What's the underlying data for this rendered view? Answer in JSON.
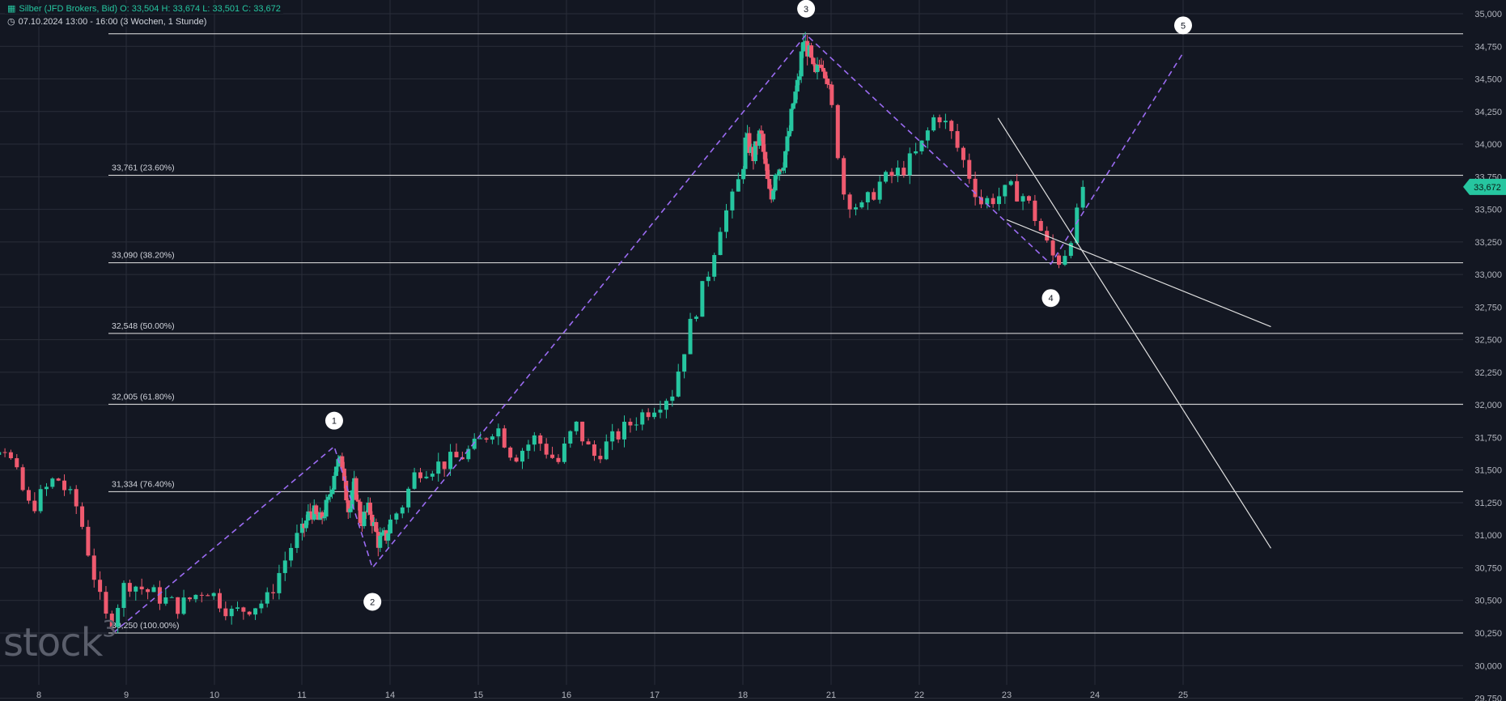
{
  "header": {
    "line1": "Silber (JFD Brokers, Bid)  O: 33,504  H: 33,674  L: 33,501  C: 33,672",
    "line2": "07.10.2024 13:00 - 16:00   (3 Wochen, 1 Stunde)"
  },
  "watermark": {
    "text": "stock",
    "sup": "3"
  },
  "colors": {
    "background": "#131722",
    "grid": "#2a2e39",
    "up": "#26c6a0",
    "down": "#ef5a6f",
    "wave": "#9b6bf2",
    "trendline": "#e0e0e0",
    "axis_text": "#b2b5be",
    "price_tag": "#26c6a0"
  },
  "chart_data": {
    "type": "candlestick",
    "instrument": "Silber (JFD Brokers, Bid)",
    "ohlc": {
      "open": 33.504,
      "high": 33.674,
      "low": 33.501,
      "close": 33.672
    },
    "last_price": "33,672",
    "y_ticks": [
      "35,000",
      "34,750",
      "34,500",
      "34,250",
      "34,000",
      "33,750",
      "33,500",
      "33,250",
      "33,000",
      "32,750",
      "32,500",
      "32,250",
      "32,000",
      "31,750",
      "31,500",
      "31,250",
      "31,000",
      "30,750",
      "30,500",
      "30,250",
      "30,000",
      "29,750"
    ],
    "ylim": [
      29.75,
      35.0
    ],
    "x_ticks": [
      {
        "label": "8",
        "x": 8
      },
      {
        "label": "9",
        "x": 9
      },
      {
        "label": "10",
        "x": 10
      },
      {
        "label": "11",
        "x": 11
      },
      {
        "label": "14",
        "x": 14
      },
      {
        "label": "15",
        "x": 15
      },
      {
        "label": "16",
        "x": 16
      },
      {
        "label": "17",
        "x": 17
      },
      {
        "label": "18",
        "x": 18
      },
      {
        "label": "21",
        "x": 21
      },
      {
        "label": "22",
        "x": 22
      },
      {
        "label": "23",
        "x": 23
      },
      {
        "label": "24",
        "x": 24
      },
      {
        "label": "25",
        "x": 25
      }
    ],
    "price_path": [
      [
        7.0,
        31.95
      ],
      [
        7.3,
        31.65
      ],
      [
        7.6,
        31.7
      ],
      [
        7.9,
        31.2
      ],
      [
        8.2,
        31.45
      ],
      [
        8.45,
        31.2
      ],
      [
        8.7,
        30.5
      ],
      [
        8.8,
        30.3
      ],
      [
        9.0,
        30.65
      ],
      [
        9.3,
        30.55
      ],
      [
        9.6,
        30.45
      ],
      [
        9.9,
        30.6
      ],
      [
        10.2,
        30.4
      ],
      [
        10.6,
        30.5
      ],
      [
        10.9,
        30.95
      ],
      [
        11.3,
        31.2
      ],
      [
        11.6,
        31.1
      ],
      [
        11.9,
        31.25
      ],
      [
        12.15,
        31.55
      ],
      [
        12.4,
        31.55
      ],
      [
        12.6,
        31.15
      ],
      [
        12.8,
        31.4
      ],
      [
        13.0,
        31.1
      ],
      [
        13.3,
        31.2
      ],
      [
        13.6,
        30.95
      ],
      [
        13.9,
        31.0
      ],
      [
        14.15,
        31.25
      ],
      [
        14.3,
        31.5
      ],
      [
        14.6,
        31.55
      ],
      [
        14.8,
        31.6
      ],
      [
        15.0,
        31.7
      ],
      [
        15.2,
        31.85
      ],
      [
        15.4,
        31.6
      ],
      [
        15.65,
        31.75
      ],
      [
        15.9,
        31.55
      ],
      [
        16.1,
        31.85
      ],
      [
        16.3,
        31.6
      ],
      [
        16.55,
        31.75
      ],
      [
        16.8,
        31.9
      ],
      [
        17.0,
        32.0
      ],
      [
        17.2,
        32.1
      ],
      [
        17.4,
        32.6
      ],
      [
        17.6,
        33.0
      ],
      [
        17.75,
        33.4
      ],
      [
        17.9,
        33.6
      ],
      [
        18.1,
        34.05
      ],
      [
        18.35,
        33.9
      ],
      [
        18.6,
        34.1
      ],
      [
        18.8,
        33.75
      ],
      [
        18.95,
        33.55
      ],
      [
        19.1,
        33.8
      ],
      [
        19.35,
        33.85
      ],
      [
        19.55,
        34.05
      ],
      [
        19.7,
        34.3
      ],
      [
        19.9,
        34.5
      ],
      [
        20.05,
        34.8
      ],
      [
        20.25,
        34.7
      ],
      [
        20.45,
        34.5
      ],
      [
        20.65,
        34.65
      ],
      [
        20.85,
        34.55
      ],
      [
        21.0,
        34.3
      ],
      [
        21.15,
        33.6
      ],
      [
        21.35,
        33.5
      ],
      [
        21.55,
        33.7
      ],
      [
        21.8,
        33.8
      ],
      [
        22.0,
        33.95
      ],
      [
        22.2,
        34.25
      ],
      [
        22.35,
        34.1
      ],
      [
        22.55,
        33.8
      ],
      [
        22.7,
        33.55
      ],
      [
        22.9,
        33.6
      ],
      [
        23.05,
        33.65
      ],
      [
        23.2,
        33.6
      ],
      [
        23.35,
        33.4
      ],
      [
        23.5,
        33.15
      ],
      [
        23.62,
        33.1
      ],
      [
        23.75,
        33.35
      ],
      [
        23.9,
        33.672
      ]
    ],
    "fib_levels": [
      {
        "price": 30.25,
        "label": "30,250 (100.00%)"
      },
      {
        "price": 31.334,
        "label": "31,334 (76.40%)"
      },
      {
        "price": 32.005,
        "label": "32,005 (61.80%)"
      },
      {
        "price": 32.548,
        "label": "32,548 (50.00%)"
      },
      {
        "price": 33.09,
        "label": "33,090 (38.20%)"
      },
      {
        "price": 33.761,
        "label": "33,761 (23.60%)"
      },
      {
        "price": 34.846,
        "label": ""
      }
    ],
    "wave_points": [
      {
        "label": "",
        "x": 8.85,
        "y": 30.25
      },
      {
        "label": "1",
        "x": 12.1,
        "y": 31.68
      },
      {
        "label": "2",
        "x": 13.4,
        "y": 30.75
      },
      {
        "label": "3",
        "x": 20.15,
        "y": 34.84
      },
      {
        "label": "4",
        "x": 23.5,
        "y": 33.08
      },
      {
        "label": "5",
        "x": 25.0,
        "y": 34.7
      }
    ],
    "trendlines": [
      {
        "from": [
          23.0,
          33.42
        ],
        "to": [
          26.0,
          32.6
        ]
      },
      {
        "from": [
          22.9,
          34.2
        ],
        "to": [
          26.0,
          30.9
        ]
      }
    ]
  }
}
